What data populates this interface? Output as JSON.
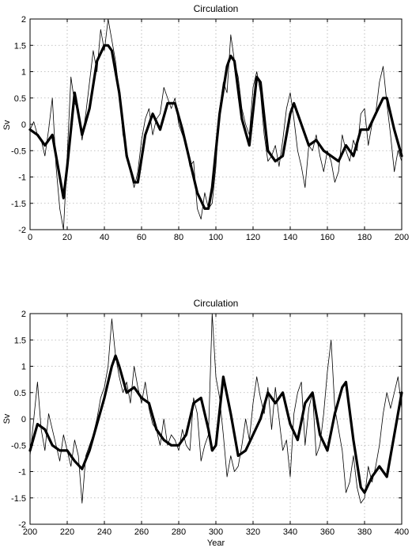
{
  "chart_data": [
    {
      "type": "line",
      "title": "Circulation",
      "xlabel": "",
      "ylabel": "Sv",
      "xlim": [
        0,
        200
      ],
      "ylim": [
        -2,
        2
      ],
      "xticks": [
        0,
        20,
        40,
        60,
        80,
        100,
        120,
        140,
        160,
        180,
        200
      ],
      "yticks": [
        -2,
        -1.5,
        -1,
        -0.5,
        0,
        0.5,
        1,
        1.5,
        2
      ],
      "grid": true,
      "series": [
        {
          "style": "thin",
          "x": [
            0,
            2,
            4,
            6,
            8,
            10,
            12,
            14,
            16,
            18,
            20,
            22,
            24,
            26,
            28,
            30,
            32,
            34,
            36,
            38,
            40,
            42,
            44,
            46,
            48,
            50,
            52,
            54,
            56,
            58,
            60,
            62,
            64,
            66,
            68,
            70,
            72,
            74,
            76,
            78,
            80,
            82,
            84,
            86,
            88,
            90,
            92,
            94,
            96,
            98,
            100,
            102,
            104,
            106,
            108,
            110,
            112,
            114,
            116,
            118,
            120,
            122,
            124,
            126,
            128,
            130,
            132,
            134,
            136,
            138,
            140,
            142,
            144,
            146,
            148,
            150,
            152,
            154,
            156,
            158,
            160,
            162,
            164,
            166,
            168,
            170,
            172,
            174,
            176,
            178,
            180,
            182,
            184,
            186,
            188,
            190,
            192,
            194,
            196,
            198,
            200
          ],
          "values": [
            -0.1,
            0.05,
            -0.2,
            -0.3,
            -0.6,
            -0.1,
            0.5,
            -0.8,
            -1.6,
            -2.0,
            -0.6,
            0.9,
            0.4,
            0.3,
            -0.3,
            0.2,
            0.8,
            1.4,
            1.0,
            1.8,
            1.4,
            2.0,
            1.6,
            1.2,
            0.6,
            -0.2,
            -0.5,
            -0.9,
            -1.2,
            -0.9,
            -0.3,
            0.1,
            0.3,
            -0.2,
            0.1,
            0.2,
            0.7,
            0.5,
            0.3,
            0.5,
            0.0,
            -0.2,
            -0.4,
            -0.8,
            -0.7,
            -1.6,
            -1.8,
            -1.3,
            -1.6,
            -1.5,
            -0.8,
            0.3,
            0.8,
            0.6,
            1.7,
            1.2,
            0.9,
            0.3,
            0.0,
            -0.2,
            0.7,
            1.0,
            0.6,
            -0.2,
            -0.7,
            -0.6,
            -0.4,
            -0.8,
            -0.3,
            0.3,
            0.6,
            0.1,
            -0.5,
            -0.8,
            -1.2,
            -0.4,
            -0.5,
            -0.2,
            -0.6,
            -0.9,
            -0.5,
            -0.7,
            -1.1,
            -0.9,
            -0.2,
            -0.5,
            -0.7,
            -0.3,
            -0.5,
            0.2,
            0.3,
            -0.4,
            0.0,
            0.2,
            0.8,
            1.1,
            0.4,
            -0.2,
            -0.9,
            -0.5,
            -0.7
          ]
        },
        {
          "style": "thick",
          "x": [
            0,
            4,
            8,
            12,
            16,
            18,
            20,
            24,
            28,
            32,
            36,
            40,
            42,
            44,
            48,
            52,
            56,
            58,
            62,
            66,
            70,
            74,
            78,
            82,
            86,
            90,
            94,
            96,
            98,
            102,
            106,
            108,
            110,
            114,
            118,
            122,
            124,
            128,
            132,
            136,
            140,
            142,
            146,
            150,
            154,
            158,
            162,
            166,
            170,
            174,
            178,
            182,
            186,
            190,
            192,
            196,
            200
          ],
          "values": [
            -0.1,
            -0.2,
            -0.4,
            -0.2,
            -1.0,
            -1.4,
            -0.8,
            0.6,
            -0.2,
            0.3,
            1.2,
            1.5,
            1.5,
            1.4,
            0.6,
            -0.6,
            -1.1,
            -1.1,
            -0.2,
            0.2,
            -0.1,
            0.4,
            0.4,
            -0.1,
            -0.7,
            -1.3,
            -1.6,
            -1.6,
            -1.2,
            0.2,
            1.1,
            1.3,
            1.2,
            0.1,
            -0.4,
            0.9,
            0.8,
            -0.5,
            -0.7,
            -0.6,
            0.2,
            0.4,
            0.0,
            -0.4,
            -0.3,
            -0.5,
            -0.6,
            -0.7,
            -0.4,
            -0.6,
            -0.1,
            -0.1,
            0.2,
            0.5,
            0.5,
            -0.1,
            -0.6
          ]
        }
      ]
    },
    {
      "type": "line",
      "title": "Circulation",
      "xlabel": "Year",
      "ylabel": "Sv",
      "xlim": [
        200,
        400
      ],
      "ylim": [
        -2,
        2
      ],
      "xticks": [
        200,
        220,
        240,
        260,
        280,
        300,
        320,
        340,
        360,
        380,
        400
      ],
      "yticks": [
        -2,
        -1.5,
        -1,
        -0.5,
        0,
        0.5,
        1,
        1.5,
        2
      ],
      "grid": true,
      "series": [
        {
          "style": "thin",
          "x": [
            200,
            202,
            204,
            206,
            208,
            210,
            212,
            214,
            216,
            218,
            220,
            222,
            224,
            226,
            228,
            230,
            232,
            234,
            236,
            238,
            240,
            242,
            244,
            246,
            248,
            250,
            252,
            254,
            256,
            258,
            260,
            262,
            264,
            266,
            268,
            270,
            272,
            274,
            276,
            278,
            280,
            282,
            284,
            286,
            288,
            290,
            292,
            294,
            296,
            298,
            300,
            302,
            304,
            306,
            308,
            310,
            312,
            314,
            316,
            318,
            320,
            322,
            324,
            326,
            328,
            330,
            332,
            334,
            336,
            338,
            340,
            342,
            344,
            346,
            348,
            350,
            352,
            354,
            356,
            358,
            360,
            362,
            364,
            366,
            368,
            370,
            372,
            374,
            376,
            378,
            380,
            382,
            384,
            386,
            388,
            390,
            392,
            394,
            396,
            398,
            400
          ],
          "values": [
            -0.7,
            0.0,
            0.7,
            -0.2,
            -0.6,
            0.1,
            -0.2,
            -0.5,
            -0.8,
            -0.3,
            -0.6,
            -0.9,
            -0.4,
            -0.7,
            -1.6,
            -0.7,
            -0.5,
            -0.3,
            0.0,
            0.4,
            0.6,
            1.0,
            1.9,
            1.2,
            0.8,
            0.5,
            0.7,
            0.3,
            1.0,
            0.6,
            0.3,
            0.7,
            0.2,
            -0.1,
            -0.2,
            -0.5,
            0.0,
            -0.5,
            -0.3,
            -0.4,
            -0.6,
            -0.2,
            -0.5,
            -0.6,
            0.4,
            0.1,
            -0.8,
            -0.5,
            -0.3,
            2.0,
            0.8,
            0.4,
            -0.3,
            -1.1,
            -0.7,
            -1.0,
            -0.9,
            -0.5,
            0.0,
            -0.4,
            0.3,
            0.8,
            0.4,
            0.1,
            0.6,
            -0.2,
            0.6,
            0.0,
            -0.6,
            -0.4,
            -1.1,
            0.1,
            0.5,
            0.7,
            -0.5,
            0.2,
            0.5,
            -0.7,
            -0.5,
            0.1,
            0.9,
            1.5,
            0.2,
            -0.2,
            -0.6,
            -1.4,
            -1.2,
            -0.7,
            -1.3,
            -1.6,
            -1.5,
            -0.9,
            -1.2,
            -0.9,
            -0.5,
            0.1,
            0.5,
            0.2,
            0.5,
            0.8,
            0.2
          ]
        },
        {
          "style": "thick",
          "x": [
            200,
            204,
            208,
            212,
            216,
            220,
            224,
            228,
            232,
            236,
            240,
            244,
            246,
            248,
            252,
            256,
            260,
            264,
            268,
            272,
            276,
            280,
            284,
            288,
            292,
            296,
            298,
            300,
            304,
            308,
            312,
            316,
            320,
            324,
            328,
            332,
            336,
            340,
            344,
            348,
            352,
            356,
            360,
            364,
            368,
            370,
            374,
            378,
            380,
            384,
            388,
            392,
            396,
            400
          ],
          "values": [
            -0.6,
            -0.1,
            -0.2,
            -0.5,
            -0.6,
            -0.6,
            -0.8,
            -0.95,
            -0.6,
            -0.1,
            0.4,
            1.0,
            1.2,
            1.0,
            0.5,
            0.6,
            0.4,
            0.3,
            -0.2,
            -0.4,
            -0.5,
            -0.5,
            -0.3,
            0.3,
            0.4,
            -0.2,
            -0.6,
            -0.5,
            0.8,
            0.1,
            -0.7,
            -0.6,
            -0.3,
            0.0,
            0.5,
            0.3,
            0.5,
            -0.1,
            -0.4,
            0.3,
            0.5,
            -0.3,
            -0.6,
            0.1,
            0.6,
            0.7,
            -0.4,
            -1.3,
            -1.4,
            -1.1,
            -0.9,
            -1.1,
            -0.3,
            0.5
          ]
        }
      ]
    }
  ]
}
